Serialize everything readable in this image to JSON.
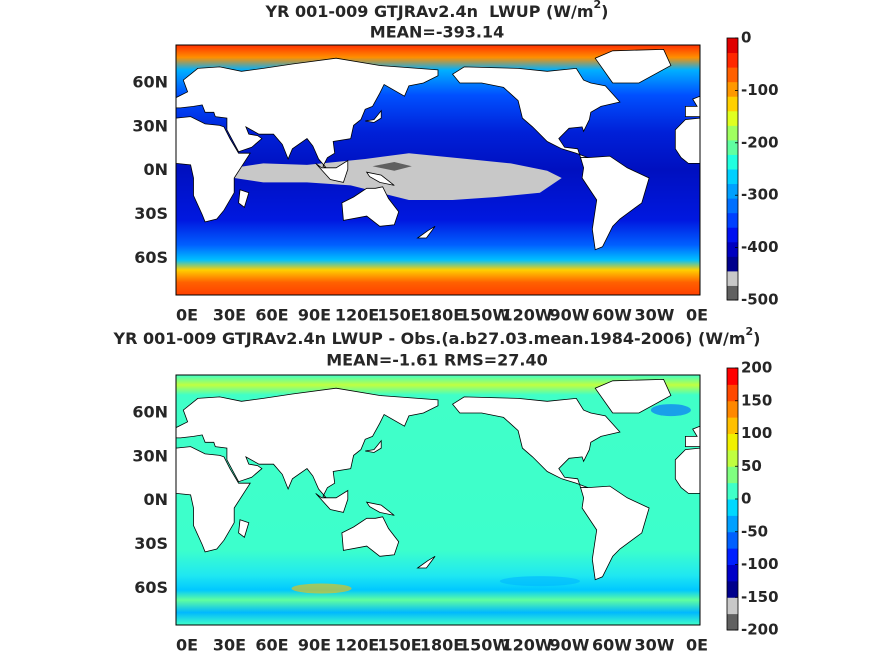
{
  "panels": [
    {
      "title": {
        "text": "YR 001-009 GTJRAv2.4n  LWUP (W/m",
        "superscript": "2",
        "closing": ")"
      },
      "subtitle": "MEAN=-393.14",
      "lat_labels": [
        "60N",
        "30N",
        "0N",
        "30S",
        "60S"
      ],
      "lon_labels": [
        "0E",
        "30E",
        "60E",
        "90E",
        "120E",
        "150E",
        "180E",
        "150W",
        "120W",
        "90W",
        "60W",
        "30W",
        "0E"
      ],
      "colorbar": {
        "lim": [
          -500,
          0
        ],
        "ticks": [
          0,
          -100,
          -200,
          -300,
          -400,
          -500
        ],
        "colors": [
          "#606060",
          "#c8c8c8",
          "#00008c",
          "#0000c0",
          "#0010f0",
          "#0040ff",
          "#0070ff",
          "#00a0ff",
          "#00d0ff",
          "#20ffe0",
          "#60ffa0",
          "#a0ff60",
          "#e0ff20",
          "#ffd000",
          "#ff9800",
          "#ff6000",
          "#ff2800",
          "#e00000"
        ]
      }
    },
    {
      "title": {
        "text": "YR 001-009 GTJRAv2.4n LWUP - Obs.(a.b27.03.mean.1984-2006) (W/m",
        "superscript": "2",
        "closing": ")"
      },
      "subtitle": "MEAN=-1.61 RMS=27.40",
      "lat_labels": [
        "60N",
        "30N",
        "0N",
        "30S",
        "60S"
      ],
      "lon_labels": [
        "0E",
        "30E",
        "60E",
        "90E",
        "120E",
        "150E",
        "180E",
        "150W",
        "120W",
        "90W",
        "60W",
        "30W",
        "0E"
      ],
      "colorbar": {
        "lim": [
          -200,
          200
        ],
        "ticks": [
          200,
          150,
          100,
          50,
          0,
          -50,
          -100,
          -150,
          -200
        ],
        "colors": [
          "#606060",
          "#c8c8c8",
          "#00008c",
          "#0000c8",
          "#0020ff",
          "#0060ff",
          "#00a0ff",
          "#00d8ff",
          "#40ffc8",
          "#80ff80",
          "#c0ff40",
          "#f0f000",
          "#ffc000",
          "#ff8800",
          "#ff4800",
          "#ff0000"
        ]
      }
    }
  ]
}
